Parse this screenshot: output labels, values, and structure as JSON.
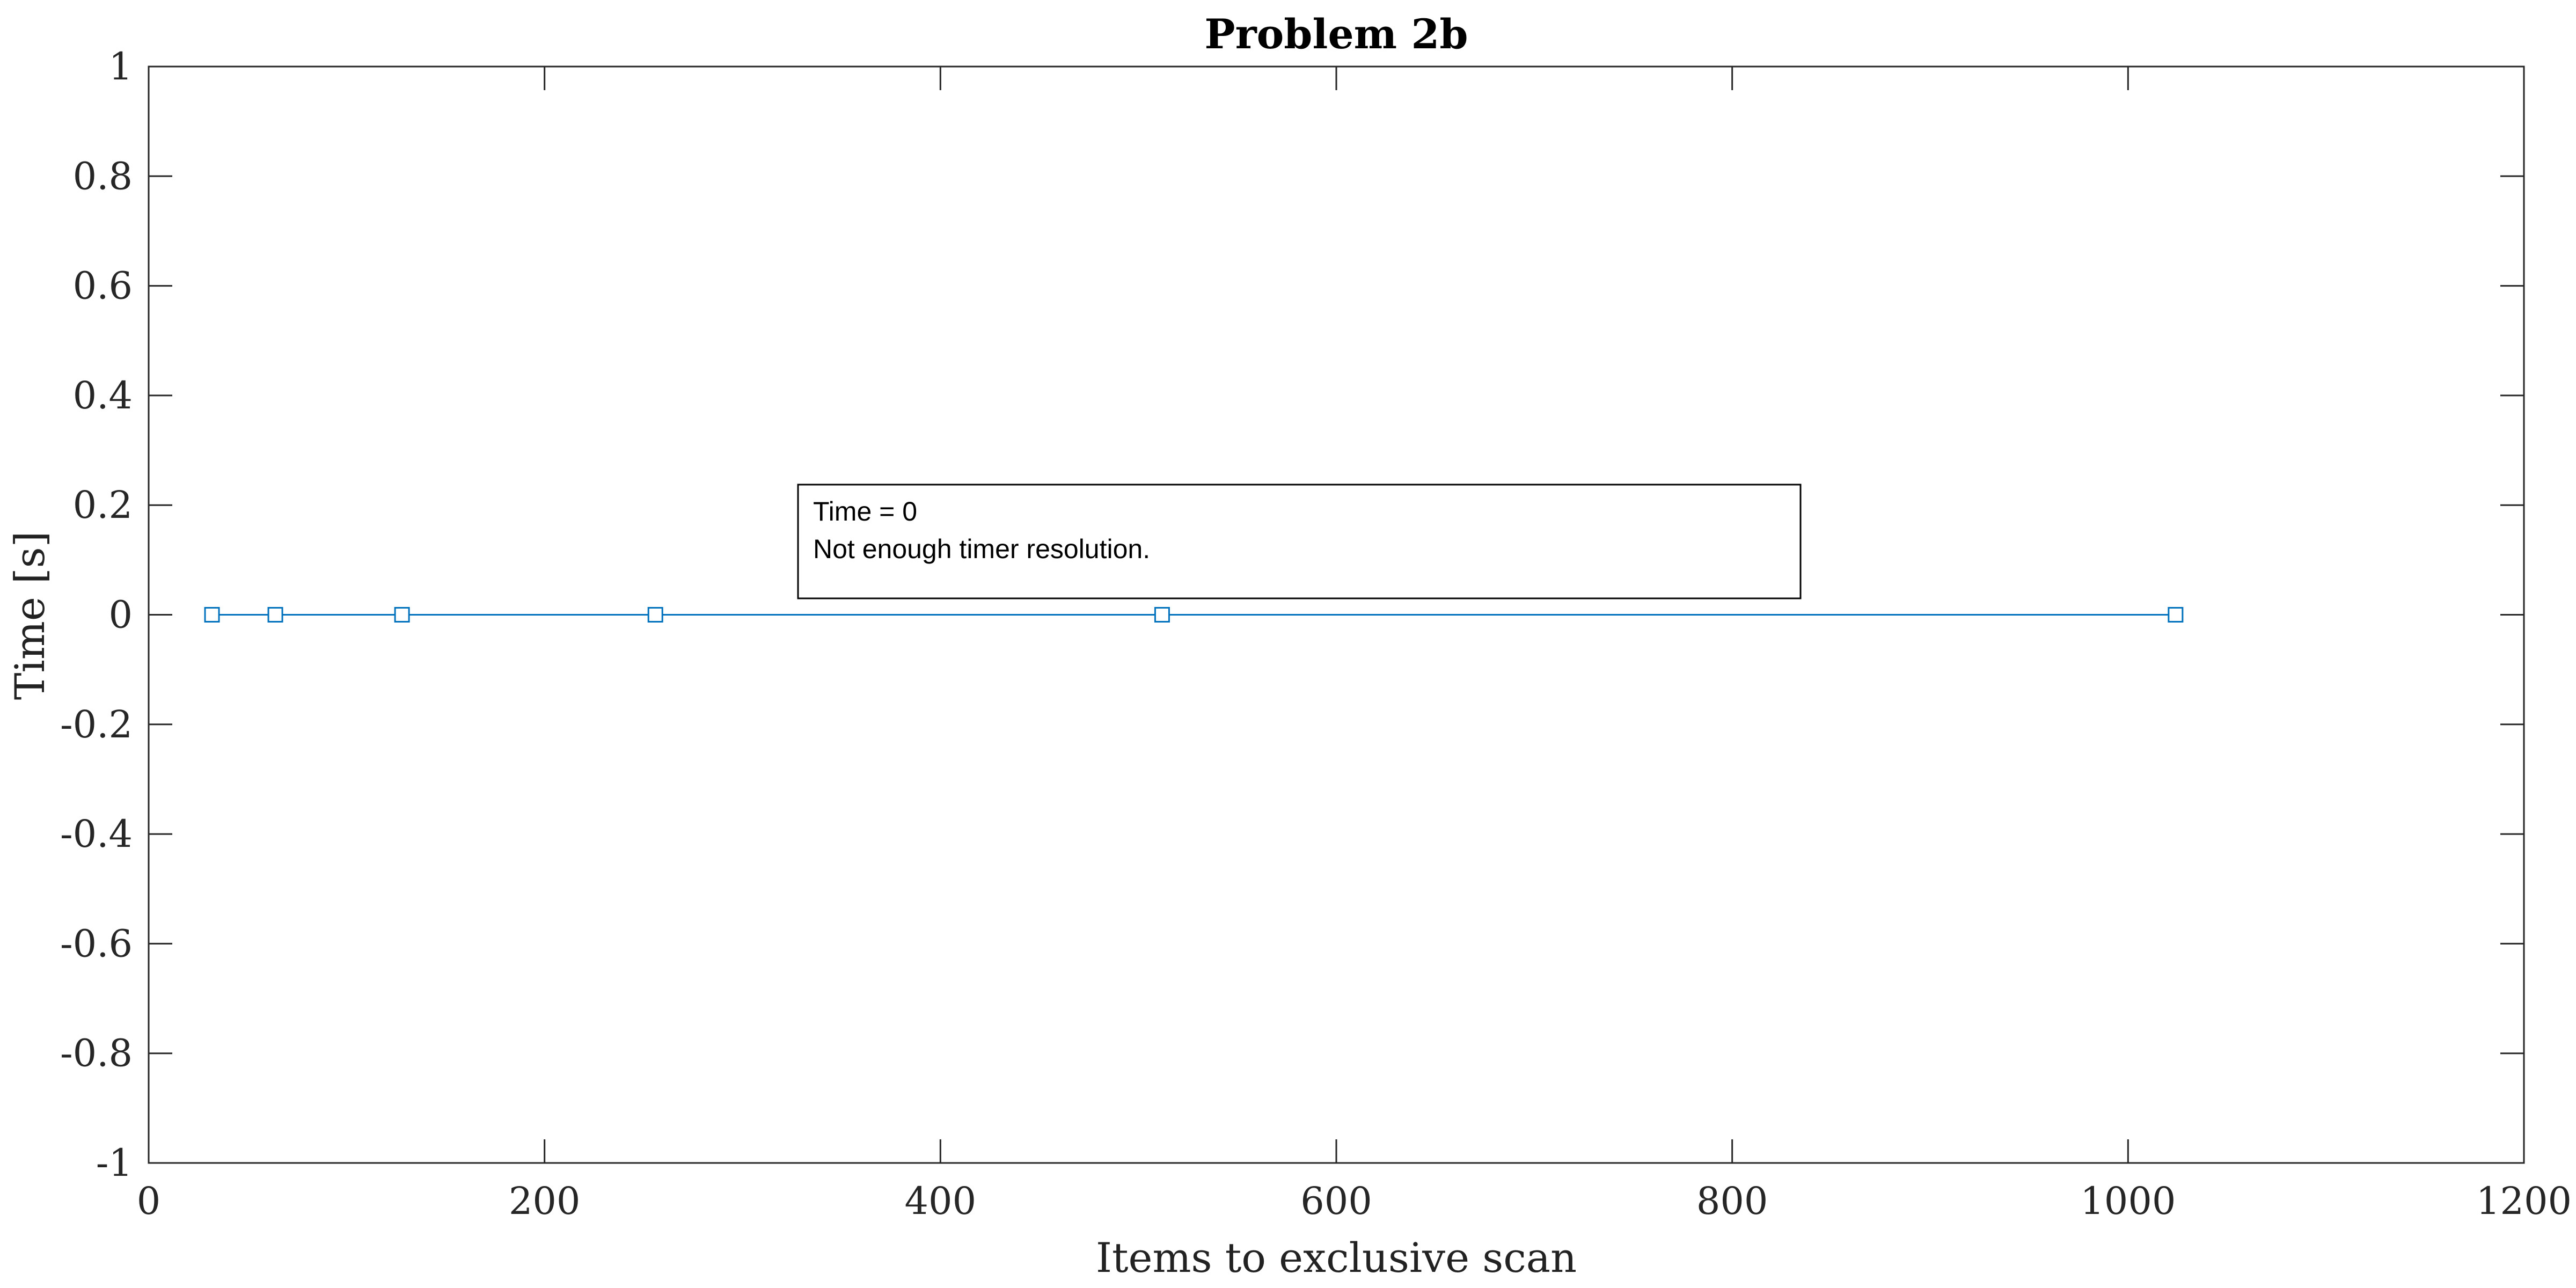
{
  "chart_data": {
    "type": "line",
    "title": "Problem 2b",
    "xlabel": "Items to exclusive scan",
    "ylabel": "Time [s]",
    "xlim": [
      0,
      1200
    ],
    "ylim": [
      -1,
      1
    ],
    "xticks": [
      0,
      200,
      400,
      600,
      800,
      1000,
      1200
    ],
    "yticks": [
      -1,
      -0.8,
      -0.6,
      -0.4,
      -0.2,
      0,
      0.2,
      0.4,
      0.6,
      0.8,
      1
    ],
    "xtick_labels": [
      "0",
      "200",
      "400",
      "600",
      "800",
      "1000",
      "1200"
    ],
    "ytick_labels": [
      "-1",
      "-0.8",
      "-0.6",
      "-0.4",
      "-0.2",
      "0",
      "0.2",
      "0.4",
      "0.6",
      "0.8",
      "1"
    ],
    "grid": false,
    "series": [
      {
        "x": [
          32,
          64,
          128,
          256,
          512,
          1024
        ],
        "y": [
          0,
          0,
          0,
          0,
          0,
          0
        ],
        "marker": "square",
        "color": "#0072BD"
      }
    ],
    "annotation": {
      "lines": [
        "Time = 0",
        "Not enough timer resolution."
      ]
    }
  }
}
